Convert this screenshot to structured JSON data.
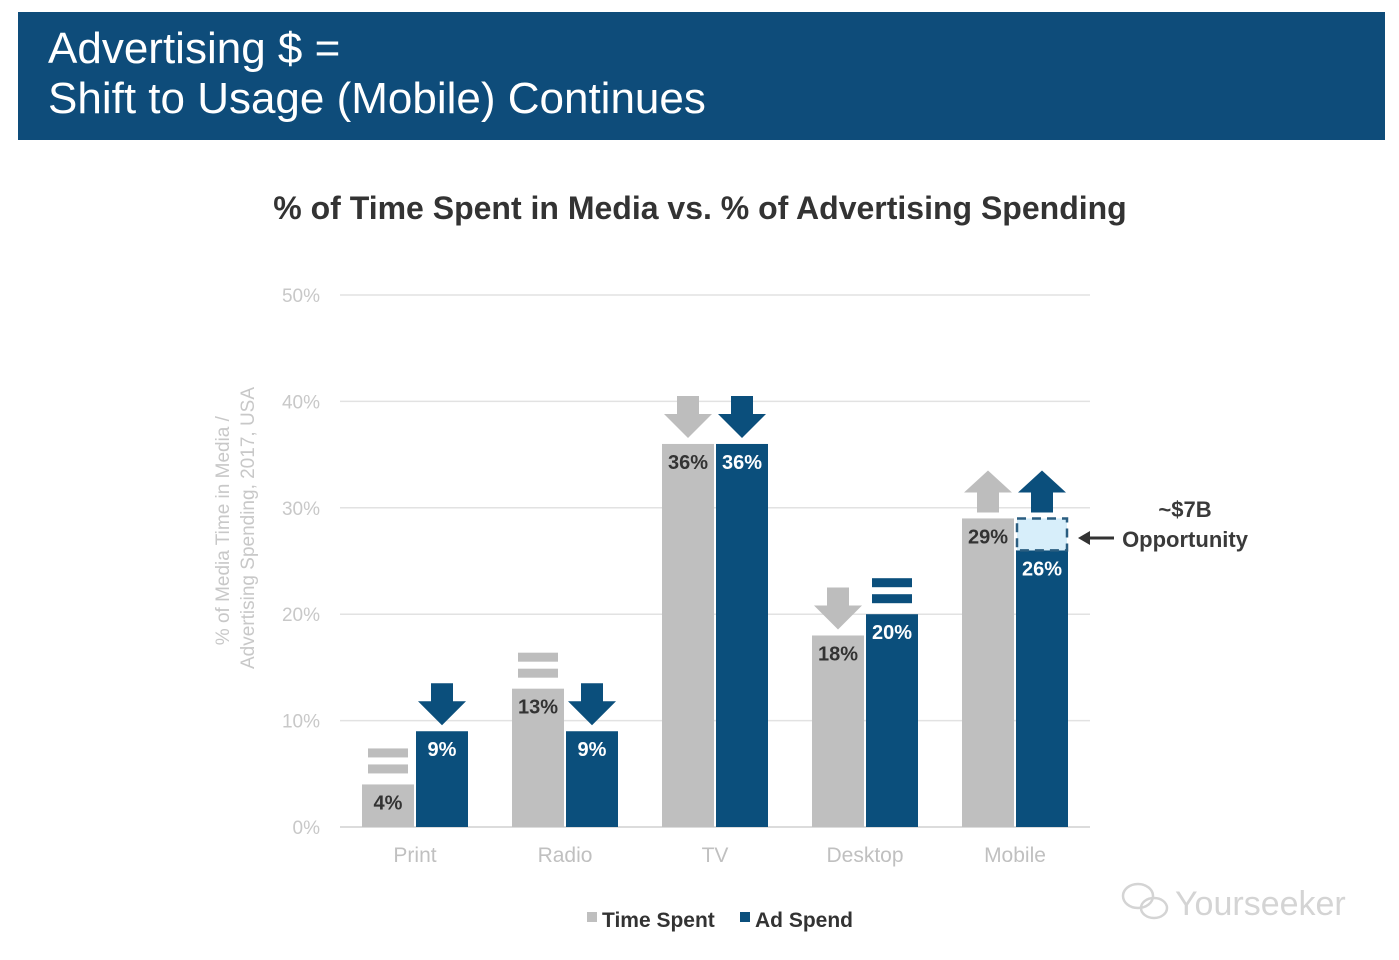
{
  "header": {
    "title": "Advertising $ =\nShift to Usage (Mobile) Continues"
  },
  "colors": {
    "header": "#0e4c7a",
    "time_spent": "#bfbfbf",
    "ad_spend": "#0b4f7c",
    "opportunity_fill": "#d7eefa",
    "grid": "#e2e2e2"
  },
  "chart_data": {
    "type": "bar",
    "title": "% of Time Spent in Media vs. % of Advertising Spending",
    "ylabel": "% of Media Time in Media / Advertising Spending, 2017, USA",
    "xlabel": "",
    "ylim": [
      0,
      50
    ],
    "yticks": [
      "0%",
      "10%",
      "20%",
      "30%",
      "40%",
      "50%"
    ],
    "grid": true,
    "legend_position": "bottom",
    "categories": [
      "Print",
      "Radio",
      "TV",
      "Desktop",
      "Mobile"
    ],
    "series": [
      {
        "name": "Time Spent",
        "values": [
          4,
          13,
          36,
          18,
          29
        ],
        "labels": [
          "4%",
          "13%",
          "36%",
          "18%",
          "29%"
        ],
        "trend": [
          "flat",
          "flat",
          "down",
          "down",
          "up"
        ]
      },
      {
        "name": "Ad Spend",
        "values": [
          9,
          9,
          36,
          20,
          26
        ],
        "labels": [
          "9%",
          "9%",
          "36%",
          "20%",
          "26%"
        ],
        "trend": [
          "down",
          "down",
          "down",
          "flat",
          "up"
        ]
      }
    ],
    "annotation": {
      "category": "Mobile",
      "from": 26,
      "to": 29,
      "amount": "~$7B",
      "label": "Opportunity"
    }
  },
  "watermark": "Yourseeker"
}
